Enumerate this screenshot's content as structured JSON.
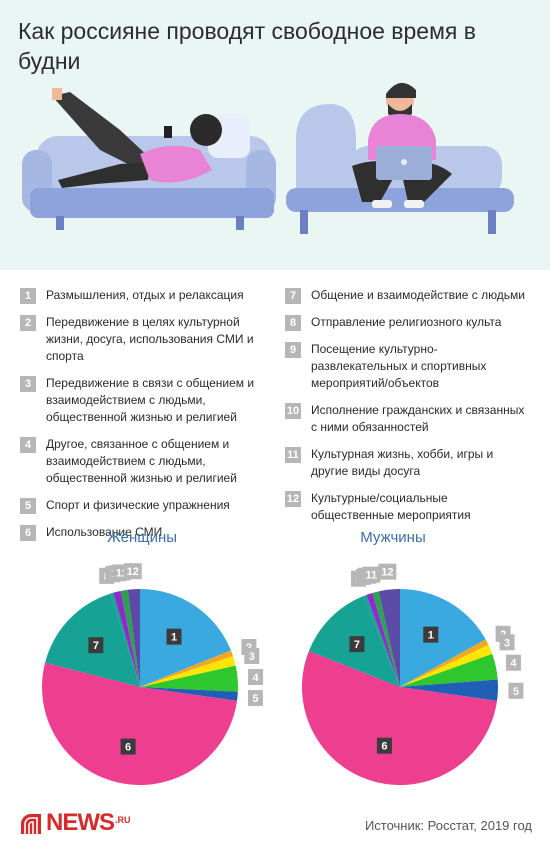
{
  "title": "Как россияне проводят свободное время в будни",
  "legend_left": [
    {
      "num": "1",
      "text": "Размышления, отдых и релаксация"
    },
    {
      "num": "2",
      "text": "Передвижение в целях культурной жизни, досуга, использования СМИ и спорта"
    },
    {
      "num": "3",
      "text": "Передвижение в связи с общением и взаимодействием с людьми, общественной жизнью и религией"
    },
    {
      "num": "4",
      "text": "Другое, связанное с общением и взаимодействием с людьми, общественной жизнью и религией"
    },
    {
      "num": "5",
      "text": "Спорт и физические упражнения"
    },
    {
      "num": "6",
      "text": "Использование СМИ"
    }
  ],
  "legend_right": [
    {
      "num": "7",
      "text": "Общение и взаимодействие с людьми"
    },
    {
      "num": "8",
      "text": "Отправление религиозного культа"
    },
    {
      "num": "9",
      "text": "Посещение культурно-развлекательных и спортивных мероприятий/объектов"
    },
    {
      "num": "10",
      "text": "Исполнение гражданских и связанных с ними обязанностей"
    },
    {
      "num": "11",
      "text": "Культурная жизнь, хобби, игры и другие виды досуга"
    },
    {
      "num": "12",
      "text": "Культурные/социальные общественные мероприятия"
    }
  ],
  "colors": {
    "background_top": "#e9f6f3",
    "pie_title": "#3d6fa5",
    "label_box": "#4a4a4a",
    "label_box_legend": "#b6b6b6",
    "brand": "#d52b2b"
  },
  "chart_data": [
    {
      "type": "pie",
      "title": "Женщины",
      "labels": [
        "1",
        "2",
        "3",
        "4",
        "5",
        "6",
        "7",
        "8",
        "9",
        "10",
        "11",
        "12"
      ],
      "values": [
        19.0,
        1.0,
        1.6,
        4.3,
        1.5,
        52.0,
        16.2,
        0.5,
        1.2,
        0.1,
        1.1,
        2.0
      ],
      "colors": [
        "#3aa9e0",
        "#f5a623",
        "#ffe600",
        "#2ec82e",
        "#1f5fb5",
        "#ee3e8f",
        "#16a396",
        "#16a396",
        "#8e2cc7",
        "#2b56a8",
        "#2ca24f",
        "#5b4aa6"
      ]
    },
    {
      "type": "pie",
      "title": "Мужчины",
      "labels": [
        "1",
        "2",
        "3",
        "4",
        "5",
        "6",
        "7",
        "8",
        "9",
        "10",
        "11",
        "12"
      ],
      "values": [
        17.0,
        1.0,
        1.6,
        4.3,
        3.5,
        54.0,
        13.0,
        0.5,
        1.0,
        0.1,
        1.0,
        3.5
      ],
      "colors": [
        "#3aa9e0",
        "#f5a623",
        "#ffe600",
        "#2ec82e",
        "#1f5fb5",
        "#ee3e8f",
        "#16a396",
        "#16a396",
        "#8e2cc7",
        "#2b56a8",
        "#2ca24f",
        "#5b4aa6"
      ]
    }
  ],
  "logo": {
    "text": "NEWS",
    "sub": ".RU"
  },
  "source": "Источник: Росстат, 2019 год"
}
